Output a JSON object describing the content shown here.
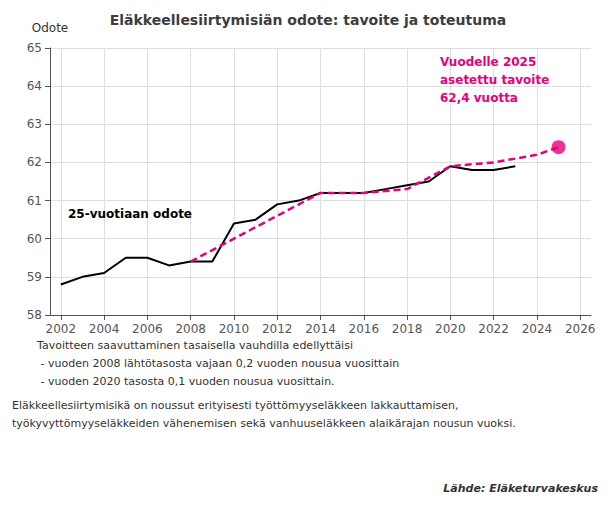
{
  "chart_data": {
    "type": "line",
    "title": "Eläkkeellesiirtymisiän odote: tavoite ja toteutuma",
    "ylabel": "Odote",
    "xlim": [
      2001.5,
      2026.5
    ],
    "ylim": [
      58,
      65
    ],
    "xticks": [
      2002,
      2004,
      2006,
      2008,
      2010,
      2012,
      2014,
      2016,
      2018,
      2020,
      2022,
      2024,
      2026
    ],
    "yticks": [
      58,
      59,
      60,
      61,
      62,
      63,
      64,
      65
    ],
    "grid": true,
    "series": [
      {
        "type": "line",
        "color": "#000000",
        "line_style": "solid",
        "x": [
          2002,
          2003,
          2004,
          2005,
          2006,
          2007,
          2008,
          2009,
          2010,
          2011,
          2012,
          2013,
          2014,
          2015,
          2016,
          2017,
          2018,
          2019,
          2020,
          2021,
          2022,
          2023
        ],
        "values": [
          58.8,
          59.0,
          59.1,
          59.5,
          59.5,
          59.3,
          59.4,
          59.4,
          60.4,
          60.5,
          60.9,
          61.0,
          61.2,
          61.2,
          61.2,
          61.3,
          61.4,
          61.5,
          61.9,
          61.8,
          61.8,
          61.9
        ]
      },
      {
        "type": "line",
        "color": "#e6007e",
        "line_style": "dashed",
        "x": [
          2008,
          2010,
          2012,
          2014,
          2016,
          2018,
          2020,
          2022,
          2024,
          2025
        ],
        "values": [
          59.4,
          60.0,
          60.6,
          61.2,
          61.2,
          61.3,
          61.9,
          62.0,
          62.2,
          62.4
        ]
      },
      {
        "type": "scatter",
        "color": "#e6007e",
        "marker": "circle",
        "x": [
          2025
        ],
        "values": [
          62.4
        ]
      }
    ],
    "annotations": [
      {
        "text": "25-vuotiaan odote",
        "color": "#000000"
      },
      {
        "text": "Vuodelle 2025",
        "color": "#e6007e"
      },
      {
        "text": "asetettu tavoite",
        "color": "#e6007e"
      },
      {
        "text": "62,4 vuotta",
        "color": "#e6007e"
      }
    ],
    "footnotes": [
      "Tavoitteen saavuttaminen tasaisella vauhdilla edellyttäisi",
      " - vuoden 2008 lähtötasosta vajaan 0,2 vuoden nousua vuosittain",
      " - vuoden 2020 tasosta 0,1 vuoden nousua vuosittain.",
      "Eläkkeellesiirtymisikä on noussut erityisesti työttömyyseläkkeen lakkauttamisen,",
      "työkyvyttömyyseläkkeiden vähenemisen sekä vanhuuseläkkeen alaikärajan nousun vuoksi."
    ],
    "source": "Lähde: Eläketurvakeskus"
  }
}
